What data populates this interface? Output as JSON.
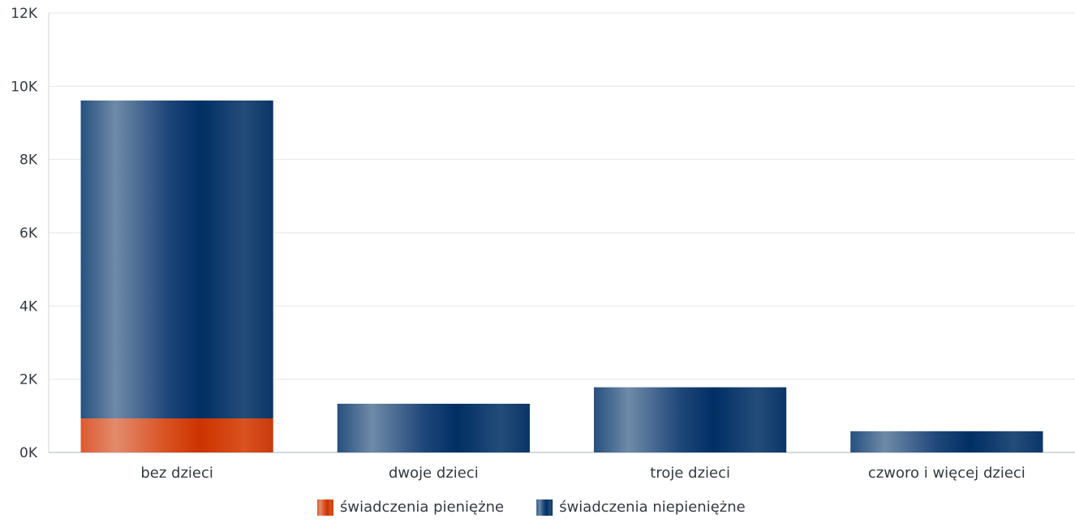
{
  "chart_data": {
    "type": "bar",
    "stacked": true,
    "categories": [
      "bez dzieci",
      "dwoje dzieci",
      "troje dzieci",
      "czworo i więcej dzieci"
    ],
    "series": [
      {
        "name": "świadczenia pieniężne",
        "values": [
          930,
          0,
          0,
          0
        ],
        "color": "#d2410f"
      },
      {
        "name": "świadczenia niepieniężne",
        "values": [
          8680,
          1330,
          1780,
          580
        ],
        "color": "#0e3566"
      }
    ],
    "yticks": [
      "0K",
      "2K",
      "4K",
      "6K",
      "8K",
      "10K",
      "12K"
    ],
    "ylim": [
      0,
      12000
    ],
    "grid": true,
    "legend_position": "bottom-center"
  }
}
